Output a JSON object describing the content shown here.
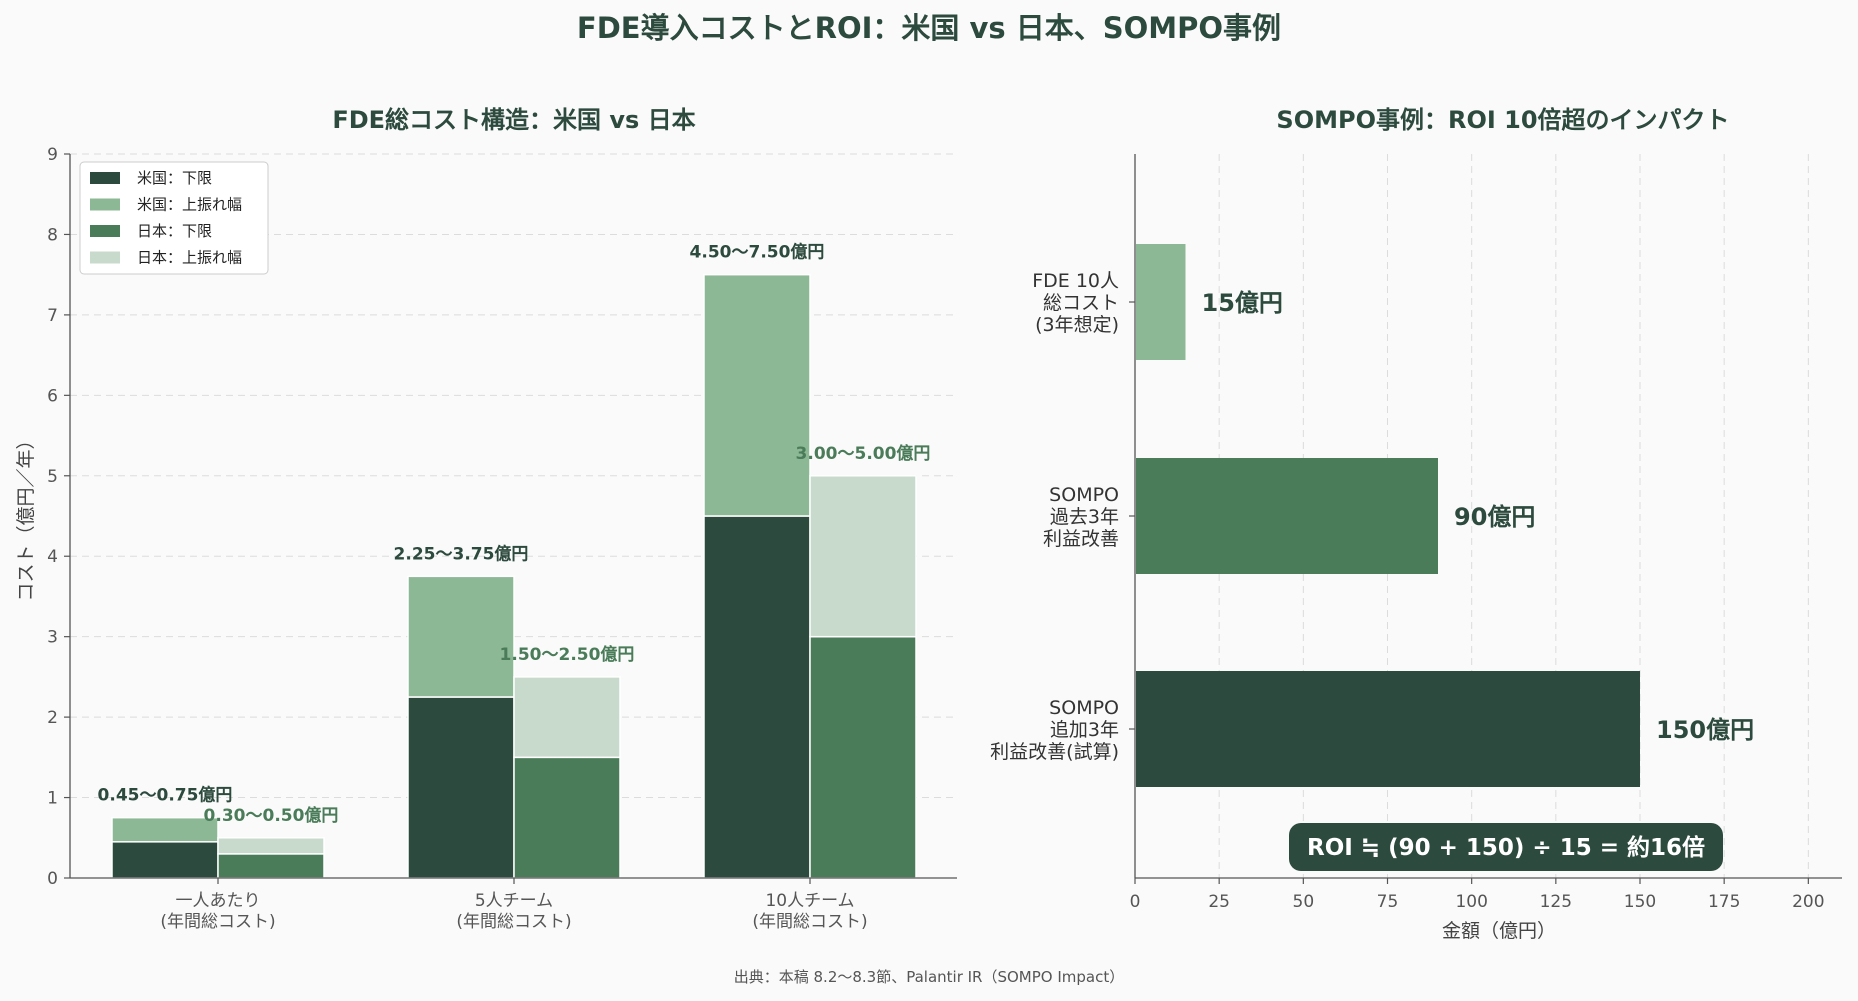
{
  "title": "FDE導入コストとROI：米国 vs 日本、SOMPO事例",
  "source": "出典：本稿 8.2〜8.3節、Palantir IR（SOMPO Impact）",
  "colors": {
    "us_base": "#2d4a3e",
    "us_upper": "#8db896",
    "jp_base": "#4a7c59",
    "jp_upper": "#c8dacb",
    "label_us": "#2d4a3e",
    "label_jp": "#4a7c59",
    "roi_box": "#2d4a3e"
  },
  "chart_data": [
    {
      "type": "bar",
      "title": "FDE総コスト構造：米国 vs 日本",
      "ylabel": "コスト（億円／年）",
      "xlabel": "",
      "ylim": [
        0,
        9
      ],
      "yticks": [
        "0",
        "1",
        "2",
        "3",
        "4",
        "5",
        "6",
        "7",
        "8",
        "9"
      ],
      "categories": [
        [
          "一人あたり",
          "(年間総コスト)"
        ],
        [
          "5人チーム",
          "(年間総コスト)"
        ],
        [
          "10人チーム",
          "(年間総コスト)"
        ]
      ],
      "series": [
        {
          "name": "米国：下限",
          "values": [
            0.45,
            2.25,
            4.5
          ]
        },
        {
          "name": "米国：上振れ幅",
          "values": [
            0.3,
            1.5,
            3.0
          ]
        },
        {
          "name": "日本：下限",
          "values": [
            0.3,
            1.5,
            3.0
          ]
        },
        {
          "name": "日本：上振れ幅",
          "values": [
            0.2,
            1.0,
            2.0
          ]
        }
      ],
      "range_labels_us": [
        "0.45〜0.75億円",
        "2.25〜3.75億円",
        "4.50〜7.50億円"
      ],
      "range_labels_jp": [
        "0.30〜0.50億円",
        "1.50〜2.50億円",
        "3.00〜5.00億円"
      ],
      "legend": [
        "米国：下限",
        "米国：上振れ幅",
        "日本：下限",
        "日本：上振れ幅"
      ],
      "legend_position": "top-left",
      "grid": true
    },
    {
      "type": "bar",
      "orientation": "horizontal",
      "title": "SOMPO事例：ROI 10倍超のインパクト",
      "xlabel": "金額（億円）",
      "xlim": [
        0,
        210
      ],
      "xticks": [
        "0",
        "25",
        "50",
        "75",
        "100",
        "125",
        "150",
        "175",
        "200"
      ],
      "categories": [
        [
          "FDE 10人",
          "総コスト",
          "(3年想定)"
        ],
        [
          "SOMPO",
          "過去3年",
          "利益改善"
        ],
        [
          "SOMPO",
          "追加3年",
          "利益改善(試算)"
        ]
      ],
      "values": [
        15,
        90,
        150
      ],
      "value_labels": [
        "15億円",
        "90億円",
        "150億円"
      ],
      "annotation": "ROI ≒ (90 + 150) ÷ 15 = 約16倍",
      "grid": true
    }
  ]
}
